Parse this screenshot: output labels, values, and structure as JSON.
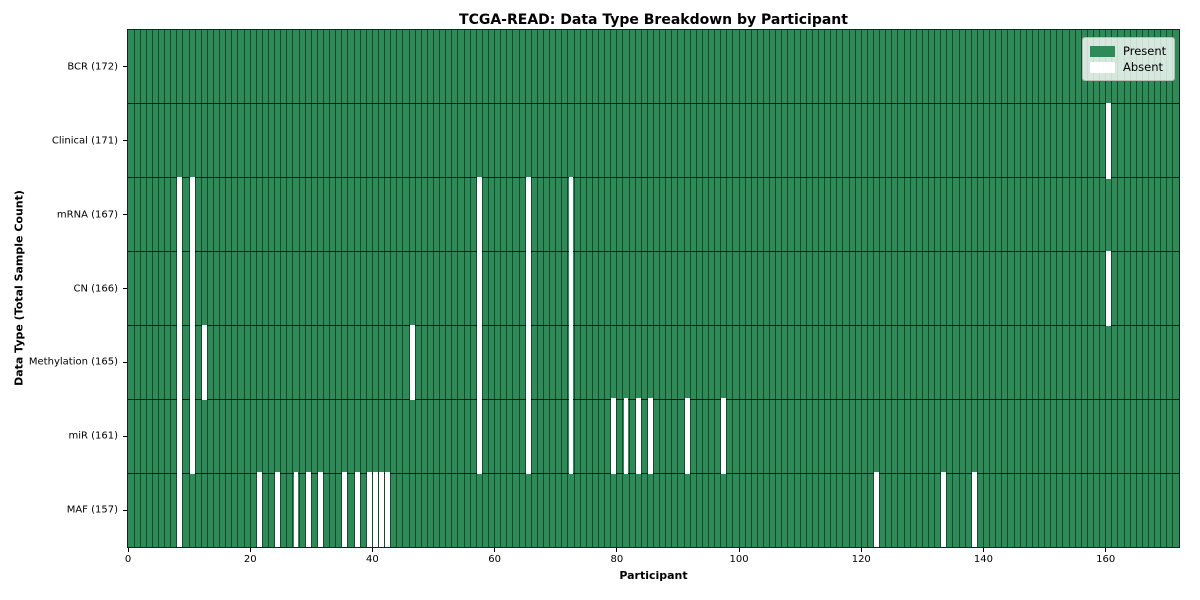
{
  "title": "TCGA-READ: Data Type Breakdown by Participant",
  "xlabel": "Participant",
  "ylabel": "Data Type (Total Sample Count)",
  "legend": {
    "present_label": "Present",
    "absent_label": "Absent"
  },
  "colors": {
    "present": "#2e8b57",
    "absent": "#ffffff"
  },
  "chart_data": {
    "type": "heatmap",
    "x_axis_label": "Participant",
    "y_axis_label": "Data Type (Total Sample Count)",
    "n_participants": 172,
    "x_ticks": [
      0,
      20,
      40,
      60,
      80,
      100,
      120,
      140,
      160
    ],
    "legend_entries": [
      "Present",
      "Absent"
    ],
    "legend_position": "upper right",
    "rows": [
      {
        "label": "BCR (172)",
        "data_type": "BCR",
        "count": 172,
        "absent_participants": []
      },
      {
        "label": "Clinical (171)",
        "data_type": "Clinical",
        "count": 171,
        "absent_participants": [
          160
        ]
      },
      {
        "label": "mRNA (167)",
        "data_type": "mRNA",
        "count": 167,
        "absent_participants": [
          8,
          10,
          57,
          65,
          72
        ]
      },
      {
        "label": "CN (166)",
        "data_type": "CN",
        "count": 166,
        "absent_participants": [
          8,
          10,
          57,
          65,
          72,
          160
        ]
      },
      {
        "label": "Methylation (165)",
        "data_type": "Methylation",
        "count": 165,
        "absent_participants": [
          8,
          10,
          12,
          46,
          57,
          65,
          72
        ]
      },
      {
        "label": "miR (161)",
        "data_type": "miR",
        "count": 161,
        "absent_participants": [
          8,
          10,
          57,
          65,
          72,
          79,
          81,
          83,
          85,
          91,
          97
        ]
      },
      {
        "label": "MAF (157)",
        "data_type": "MAF",
        "count": 157,
        "absent_participants": [
          8,
          21,
          24,
          27,
          29,
          31,
          35,
          37,
          39,
          40,
          41,
          42,
          122,
          133,
          138
        ]
      }
    ]
  }
}
